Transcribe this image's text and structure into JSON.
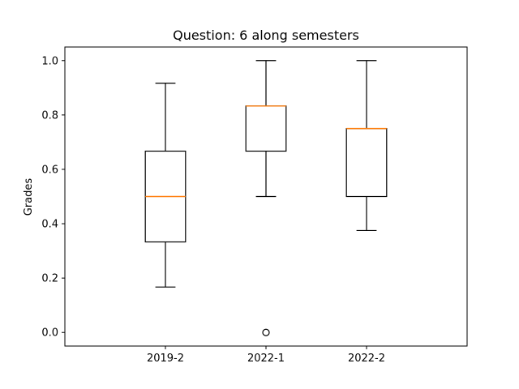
{
  "chart_data": {
    "type": "boxplot",
    "title": "Question: 6 along semesters",
    "xlabel": "",
    "ylabel": "Grades",
    "categories": [
      "2019-2",
      "2022-1",
      "2022-2"
    ],
    "ylim": [
      -0.05,
      1.05
    ],
    "yticks": [
      0.0,
      0.2,
      0.4,
      0.6,
      0.8,
      1.0
    ],
    "ytick_labels": [
      "0.0",
      "0.2",
      "0.4",
      "0.6",
      "0.8",
      "1.0"
    ],
    "grid": false,
    "boxes": [
      {
        "category": "2019-2",
        "whisker_low": 0.167,
        "q1": 0.333,
        "median": 0.5,
        "q3": 0.667,
        "whisker_high": 0.917,
        "outliers": []
      },
      {
        "category": "2022-1",
        "whisker_low": 0.5,
        "q1": 0.667,
        "median": 0.833,
        "q3": 0.833,
        "whisker_high": 1.0,
        "outliers": [
          0.0
        ]
      },
      {
        "category": "2022-2",
        "whisker_low": 0.375,
        "q1": 0.5,
        "median": 0.75,
        "q3": 0.75,
        "whisker_high": 1.0,
        "outliers": []
      }
    ],
    "colors": {
      "box": "#000000",
      "median": "#ff7f0e",
      "axes": "#000000"
    }
  }
}
